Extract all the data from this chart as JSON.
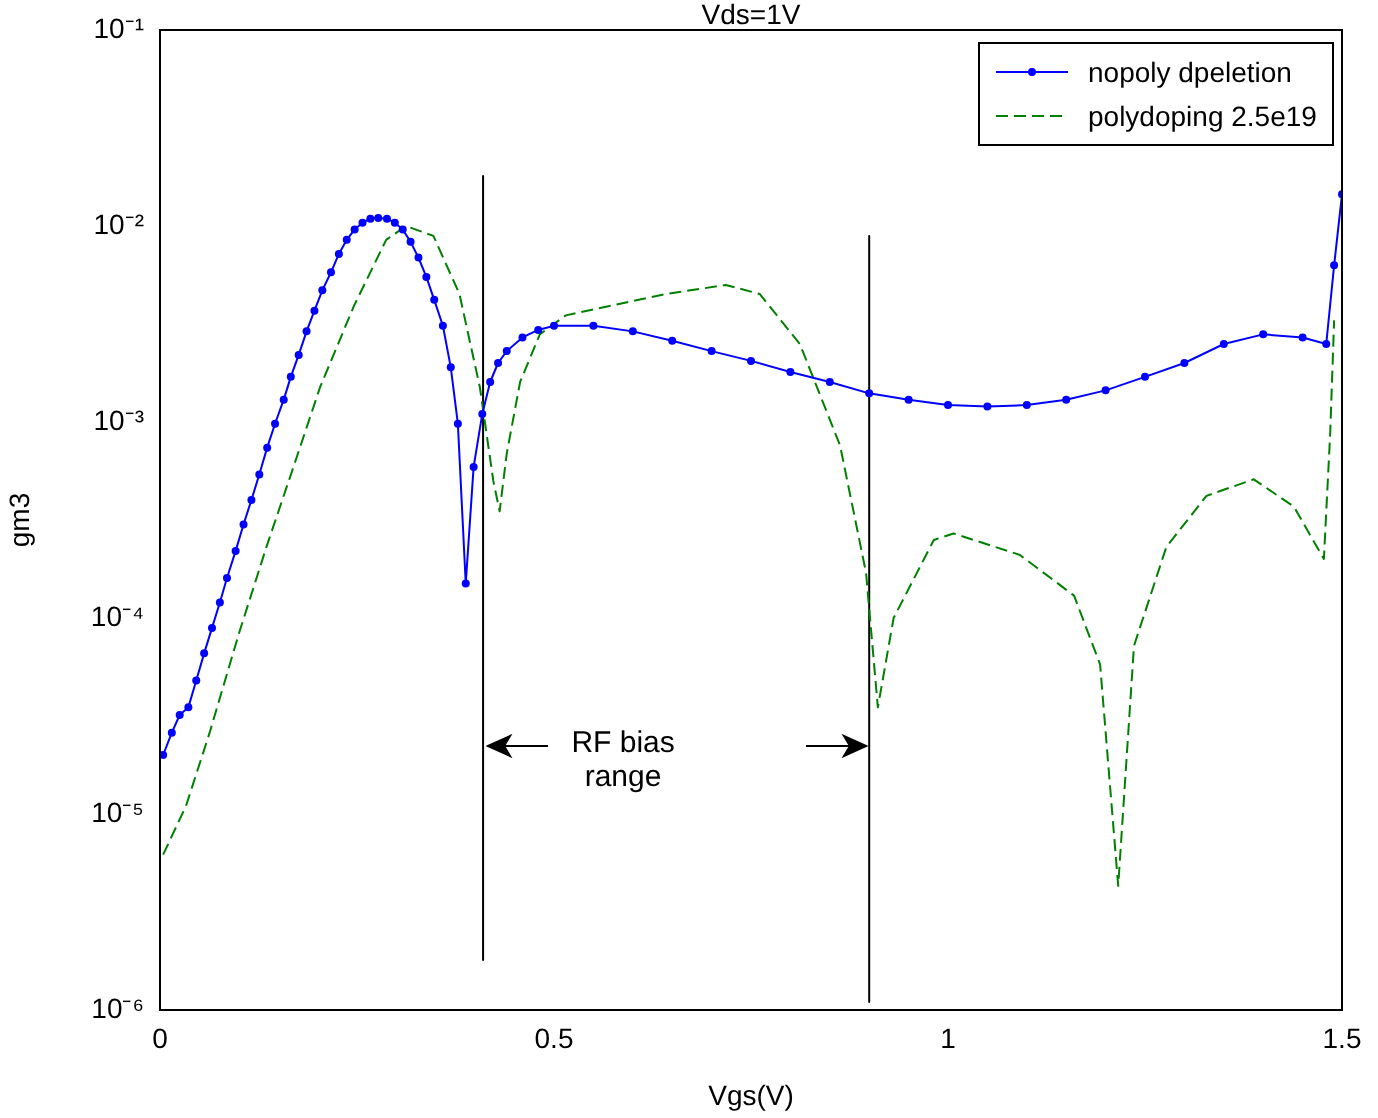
{
  "chart_data": {
    "type": "line",
    "title": "Vds=1V",
    "xlabel": "Vgs(V)",
    "ylabel": "gm3",
    "log": "y",
    "legend": "top right",
    "xlim": [
      0,
      1.5
    ],
    "xticks": [
      0,
      0.5,
      1,
      1.5
    ],
    "ylim": [
      1e-06,
      0.1
    ],
    "yticks": [
      {
        "value": 1e-06,
        "label": "10⁻⁶"
      },
      {
        "value": 1e-05,
        "label": "10⁻⁵"
      },
      {
        "value": 0.0001,
        "label": "10⁻⁴"
      },
      {
        "value": 0.001,
        "label": "10⁻³"
      },
      {
        "value": 0.01,
        "label": "10⁻²"
      },
      {
        "value": 0.1,
        "label": "10⁻¹"
      }
    ],
    "annotations": [
      "RF bias range"
    ],
    "series": [
      {
        "name": "nopoly dpeletion",
        "color": "#0000ff",
        "marker": "circle",
        "line_style": "solid",
        "x": [
          0.004,
          0.015,
          0.025,
          0.036,
          0.046,
          0.056,
          0.066,
          0.076,
          0.085,
          0.096,
          0.106,
          0.116,
          0.126,
          0.136,
          0.146,
          0.157,
          0.166,
          0.176,
          0.186,
          0.196,
          0.206,
          0.217,
          0.227,
          0.237,
          0.247,
          0.257,
          0.267,
          0.277,
          0.288,
          0.298,
          0.308,
          0.318,
          0.328,
          0.338,
          0.348,
          0.359,
          0.369,
          0.378,
          0.388,
          0.398,
          0.409,
          0.419,
          0.429,
          0.44,
          0.46,
          0.48,
          0.5,
          0.55,
          0.6,
          0.65,
          0.7,
          0.75,
          0.8,
          0.85,
          0.9,
          0.95,
          1.0,
          1.05,
          1.1,
          1.15,
          1.2,
          1.25,
          1.3,
          1.35,
          1.4,
          1.45,
          1.48,
          1.49,
          1.5
        ],
        "values": [
          2e-05,
          2.6e-05,
          3.2e-05,
          3.5e-05,
          4.8e-05,
          6.6e-05,
          8.9e-05,
          0.00012,
          0.00016,
          0.00022,
          0.0003,
          0.0004,
          0.00054,
          0.00074,
          0.00098,
          0.0013,
          0.0017,
          0.0022,
          0.0029,
          0.0037,
          0.0047,
          0.0058,
          0.0072,
          0.0085,
          0.0096,
          0.0104,
          0.0109,
          0.011,
          0.0109,
          0.0104,
          0.0096,
          0.0083,
          0.0069,
          0.0055,
          0.0042,
          0.0031,
          0.0019,
          0.00098,
          0.00015,
          0.00059,
          0.0011,
          0.0016,
          0.002,
          0.0023,
          0.0027,
          0.00295,
          0.0031,
          0.0031,
          0.0029,
          0.0026,
          0.0023,
          0.00205,
          0.0018,
          0.0016,
          0.0014,
          0.0013,
          0.00122,
          0.0012,
          0.00122,
          0.0013,
          0.00145,
          0.0017,
          0.002,
          0.0025,
          0.0028,
          0.0027,
          0.0025,
          0.0063,
          0.0145
        ]
      },
      {
        "name": "polydoping 2.5e19",
        "color": "#008000",
        "marker": "none",
        "line_style": "dashed",
        "x": [
          0.004,
          0.033,
          0.063,
          0.1,
          0.135,
          0.17,
          0.203,
          0.246,
          0.287,
          0.312,
          0.347,
          0.38,
          0.406,
          0.423,
          0.431,
          0.44,
          0.457,
          0.482,
          0.515,
          0.642,
          0.718,
          0.761,
          0.812,
          0.863,
          0.896,
          0.911,
          0.931,
          0.982,
          1.007,
          1.091,
          1.16,
          1.193,
          1.216,
          1.236,
          1.277,
          1.328,
          1.388,
          1.439,
          1.477,
          1.485,
          1.49
        ],
        "values": [
          6.2e-06,
          1.1e-05,
          2.6e-05,
          8.3e-05,
          0.00023,
          0.0006,
          0.0015,
          0.0039,
          0.0085,
          0.01,
          0.0089,
          0.0045,
          0.0015,
          0.0005,
          0.00035,
          0.00069,
          0.0016,
          0.0028,
          0.0035,
          0.0045,
          0.005,
          0.0045,
          0.0025,
          0.00076,
          0.00017,
          3.5e-05,
          0.0001,
          0.00025,
          0.00027,
          0.00021,
          0.00013,
          5.8e-05,
          4.3e-06,
          7.2e-05,
          0.00023,
          0.00042,
          0.00051,
          0.00037,
          0.0002,
          0.00087,
          0.0033
        ]
      },
      {
        "type": "line",
        "color": "#000000",
        "marker": "none",
        "line_style": "solid",
        "x": [
          0.41,
          0.41
        ],
        "values": [
          0.018,
          1.8e-06
        ]
      },
      {
        "type": "line",
        "color": "#000000",
        "marker": "none",
        "line_style": "solid",
        "x": [
          0.9,
          0.9
        ],
        "values": [
          0.0089,
          1.1e-06
        ]
      }
    ]
  }
}
